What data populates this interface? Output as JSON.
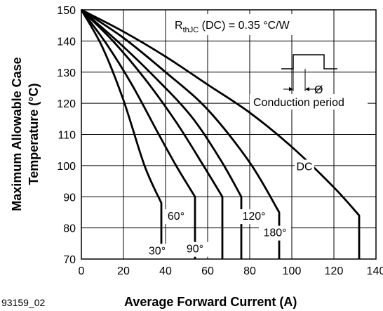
{
  "chart_data": {
    "type": "line",
    "figure_id": "93159_02",
    "xlabel": "Average Forward Current (A)",
    "ylabel_lines": [
      "Maximum Allowable Case",
      "Temperature (°C)"
    ],
    "xlim": [
      0,
      140
    ],
    "ylim": [
      70,
      150
    ],
    "x_ticks": [
      0,
      20,
      40,
      60,
      80,
      100,
      120,
      140
    ],
    "y_ticks": [
      70,
      80,
      90,
      100,
      110,
      120,
      130,
      140,
      150
    ],
    "grid": true,
    "annotation": {
      "prefix": "R",
      "subscript": "thJC",
      "suffix": " (DC) = 0.35 °C/W"
    },
    "inset_label": "Conduction period",
    "inset_symbol": "Ø",
    "series": [
      {
        "name": "30°",
        "x": [
          0,
          10,
          20,
          30,
          38,
          38
        ],
        "y": [
          150,
          138,
          121,
          100,
          88,
          70
        ]
      },
      {
        "name": "60°",
        "x": [
          0,
          12,
          24,
          36,
          45,
          54,
          54
        ],
        "y": [
          150,
          139,
          126,
          111,
          100,
          90,
          70
        ]
      },
      {
        "name": "90°",
        "x": [
          0,
          15,
          30,
          45,
          58,
          67,
          67
        ],
        "y": [
          150,
          140,
          128,
          114,
          100,
          90,
          70
        ]
      },
      {
        "name": "120°",
        "x": [
          0,
          17,
          34,
          52,
          66,
          76,
          76
        ],
        "y": [
          150,
          140,
          129,
          116,
          102,
          90,
          70
        ]
      },
      {
        "name": "180°",
        "x": [
          0,
          20,
          40,
          60,
          80,
          94,
          94
        ],
        "y": [
          150,
          141,
          130,
          118,
          101,
          85,
          70
        ]
      },
      {
        "name": "DC",
        "x": [
          0,
          20,
          40,
          60,
          80,
          100,
          120,
          132,
          132
        ],
        "y": [
          150,
          143,
          135,
          126,
          117,
          106,
          93,
          84,
          70
        ]
      }
    ],
    "series_labels": [
      "30°",
      "60°",
      "90°",
      "120°",
      "180°",
      "DC"
    ]
  }
}
